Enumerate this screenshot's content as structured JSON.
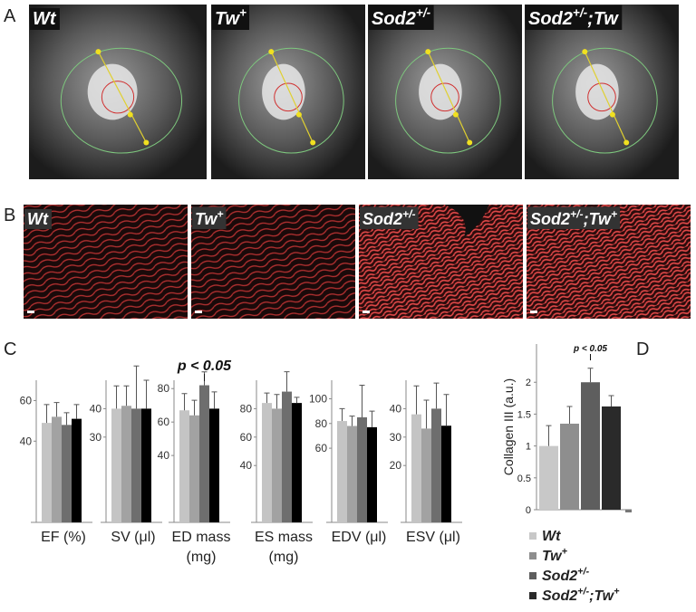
{
  "panel_labels": [
    "A",
    "B",
    "C",
    "D"
  ],
  "mri_labels": [
    [
      "Wt"
    ],
    [
      "Tw",
      "+"
    ],
    [
      "Sod2",
      "+/-"
    ],
    [
      "Sod2",
      "+/-",
      ";Tw"
    ]
  ],
  "histology_labels": [
    [
      "Wt"
    ],
    [
      "Tw",
      "+"
    ],
    [
      "Sod2",
      "+/-"
    ],
    [
      "Sod2",
      "+/-",
      ";Tw",
      "+"
    ]
  ],
  "chart_data": [
    {
      "type": "bar",
      "xlabel": [
        "EF (%)"
      ],
      "values": [
        49,
        52,
        48,
        51
      ],
      "errors": [
        9,
        7,
        6,
        7
      ],
      "colors": [
        "#c4c4c4",
        "#a2a2a2",
        "#6e6e6e",
        "#000000"
      ],
      "ylim": [
        0,
        70
      ],
      "yticks": [
        40,
        60
      ]
    },
    {
      "type": "bar",
      "xlabel": [
        "SV (μl)"
      ],
      "values": [
        40,
        41,
        40,
        40
      ],
      "errors": [
        8,
        7,
        15,
        10
      ],
      "colors": [
        "#c4c4c4",
        "#a2a2a2",
        "#6e6e6e",
        "#000000"
      ],
      "ylim": [
        0,
        50
      ],
      "yticks": [
        30,
        40
      ]
    },
    {
      "type": "bar",
      "xlabel": [
        "ED mass",
        "(mg)"
      ],
      "annotation": "p < 0.05",
      "values": [
        67,
        64,
        82,
        68
      ],
      "errors": [
        10,
        9,
        8,
        10
      ],
      "colors": [
        "#c4c4c4",
        "#a2a2a2",
        "#6e6e6e",
        "#000000"
      ],
      "ylim": [
        0,
        85
      ],
      "yticks": [
        40,
        60,
        80
      ]
    },
    {
      "type": "bar",
      "xlabel": [
        "ES mass",
        "(mg)"
      ],
      "values": [
        84,
        80,
        92,
        84
      ],
      "errors": [
        7,
        10,
        14,
        4
      ],
      "colors": [
        "#c4c4c4",
        "#a2a2a2",
        "#6e6e6e",
        "#000000"
      ],
      "ylim": [
        0,
        100
      ],
      "yticks": [
        40,
        60,
        80
      ]
    },
    {
      "type": "bar",
      "xlabel": [
        "EDV (μl)"
      ],
      "values": [
        82,
        78,
        85,
        77
      ],
      "errors": [
        10,
        8,
        26,
        13
      ],
      "colors": [
        "#c4c4c4",
        "#a2a2a2",
        "#6e6e6e",
        "#000000"
      ],
      "ylim": [
        0,
        115
      ],
      "yticks": [
        60,
        80,
        100
      ]
    },
    {
      "type": "bar",
      "xlabel": [
        "ESV (μl)"
      ],
      "values": [
        38,
        33,
        40,
        34
      ],
      "errors": [
        10,
        10,
        9,
        11
      ],
      "colors": [
        "#c4c4c4",
        "#a2a2a2",
        "#6e6e6e",
        "#000000"
      ],
      "ylim": [
        0,
        50
      ],
      "yticks": [
        20,
        30,
        40
      ]
    },
    {
      "type": "legendbar",
      "ylabel": "Collagen III (a.u.)",
      "annotation": "p < 0.05",
      "ylim": [
        0,
        2.6
      ],
      "yticks": [
        0,
        0.5,
        1,
        1.5,
        2
      ],
      "series": [
        {
          "name": [
            "Wt"
          ],
          "color": "#c8c8c8",
          "values": [
            1.0
          ],
          "errors": [
            0.32
          ]
        },
        {
          "name": [
            "Tw",
            "+"
          ],
          "color": "#8e8e8e",
          "values": [
            1.35
          ],
          "errors": [
            0.27
          ]
        },
        {
          "name": [
            "Sod2",
            "+/-"
          ],
          "color": "#5e5e5e",
          "values": [
            2.0
          ],
          "errors": [
            0.22
          ]
        },
        {
          "name": [
            "Sod2",
            "+/-",
            ";Tw",
            "+"
          ],
          "color": "#2a2a2a",
          "values": [
            1.62
          ],
          "errors": [
            0.17
          ]
        }
      ]
    }
  ]
}
